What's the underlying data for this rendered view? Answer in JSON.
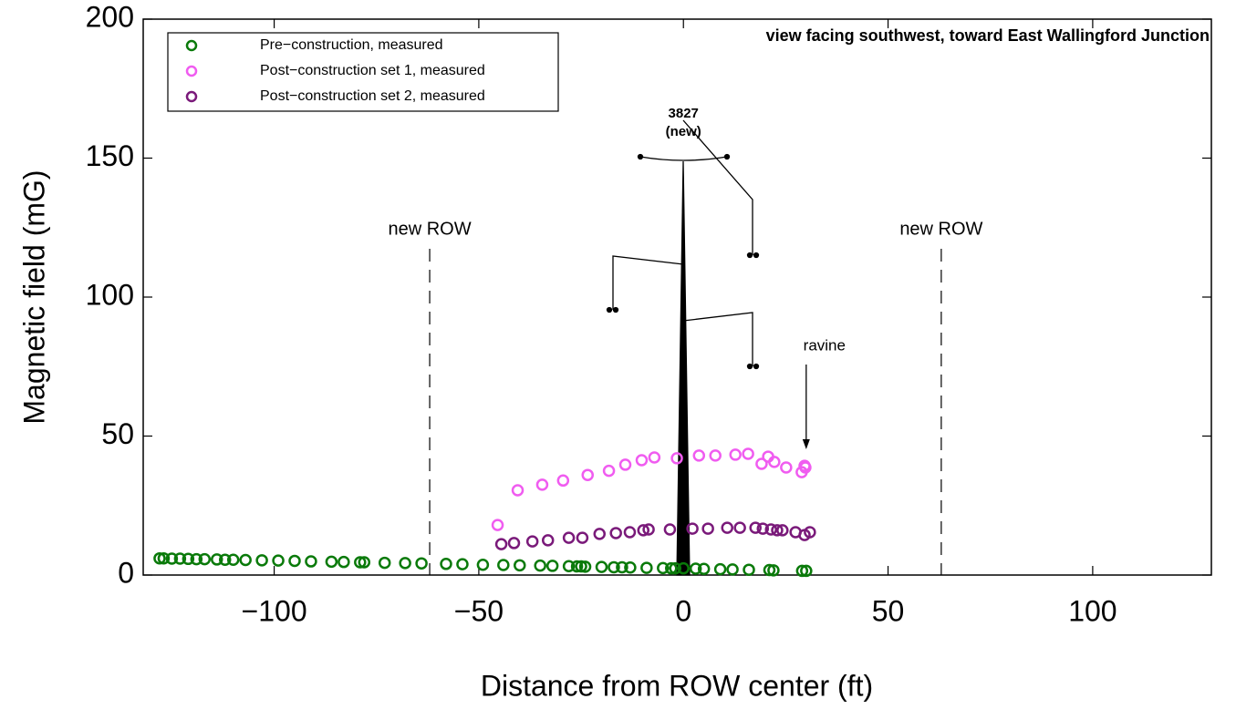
{
  "chart_data": {
    "type": "scatter",
    "title": "view facing southwest, toward East Wallingford Junction",
    "x_label": "Distance from ROW center (ft)",
    "y_label": "Magnetic field (mG)",
    "xlim": [
      -132,
      129
    ],
    "ylim": [
      0,
      200
    ],
    "xticks": [
      {
        "value": -100,
        "label": "−100"
      },
      {
        "value": -50,
        "label": "−50"
      },
      0,
      50,
      100
    ],
    "yticks": [
      0,
      50,
      100,
      150,
      200
    ],
    "legend": "upper left",
    "series": [
      {
        "name": "Pre−construction, measured",
        "color": "#0a7a0a",
        "x": [
          -128,
          -127,
          -125,
          -123,
          -121,
          -119,
          -117,
          -114,
          -112,
          -110,
          -107,
          -103,
          -99,
          -95,
          -91,
          -86,
          -83,
          -79,
          -78,
          -73,
          -68,
          -64,
          -58,
          -54,
          -49,
          -44,
          -40,
          -35,
          -32,
          -28,
          -26,
          -25,
          -24,
          -20,
          -17,
          -15,
          -13,
          -9,
          -5,
          -3,
          -2,
          0,
          3,
          5,
          9,
          12,
          16,
          21,
          22,
          29,
          30
        ],
        "values": [
          6.0,
          6.0,
          5.9,
          5.9,
          5.8,
          5.7,
          5.7,
          5.6,
          5.5,
          5.5,
          5.4,
          5.3,
          5.2,
          5.1,
          4.9,
          4.8,
          4.7,
          4.6,
          4.6,
          4.4,
          4.3,
          4.2,
          4.0,
          3.9,
          3.7,
          3.6,
          3.5,
          3.4,
          3.3,
          3.2,
          3.1,
          3.1,
          3.0,
          2.9,
          2.8,
          2.8,
          2.7,
          2.6,
          2.5,
          2.4,
          2.4,
          2.4,
          2.3,
          2.2,
          2.1,
          2.0,
          1.9,
          1.8,
          1.7,
          1.5,
          1.5
        ]
      },
      {
        "name": "Post−construction set 1, measured",
        "color": "#f05cf0",
        "x": [
          -45.4,
          -40.5,
          -34.5,
          -29.4,
          -23.4,
          -18.2,
          -14.2,
          -10.2,
          -7.1,
          -1.6,
          3.8,
          7.8,
          12.7,
          15.8,
          19.1,
          20.7,
          22.2,
          25.1,
          28.9,
          29.8,
          29.6
        ],
        "values": [
          18.0,
          30.5,
          32.5,
          34.0,
          36.0,
          37.5,
          39.7,
          41.3,
          42.3,
          42.0,
          43.0,
          43.0,
          43.3,
          43.6,
          40.0,
          42.6,
          40.7,
          38.7,
          37.0,
          38.7,
          39.3
        ]
      },
      {
        "name": "Post−construction set 2, measured",
        "color": "#7a1a7a",
        "x": [
          -44.5,
          -41.4,
          -36.9,
          -33.1,
          -28.0,
          -24.7,
          -20.5,
          -16.5,
          -13.1,
          -9.8,
          -8.5,
          -3.3,
          2.2,
          6.0,
          10.7,
          13.8,
          17.6,
          19.4,
          21.4,
          22.9,
          24.2,
          27.4,
          29.6,
          30.9
        ],
        "values": [
          11.1,
          11.5,
          12.1,
          12.5,
          13.4,
          13.4,
          14.8,
          15.1,
          15.4,
          16.1,
          16.4,
          16.4,
          16.7,
          16.7,
          17.0,
          17.0,
          17.0,
          16.7,
          16.4,
          16.1,
          16.1,
          15.4,
          14.4,
          15.4
        ]
      }
    ],
    "annotations": [
      {
        "text": "new ROW",
        "x": -62
      },
      {
        "text": "new ROW",
        "x": 63
      },
      {
        "text": "ravine",
        "x": 30
      },
      {
        "text": [
          "3827",
          "(new)"
        ],
        "x": 0
      }
    ]
  }
}
